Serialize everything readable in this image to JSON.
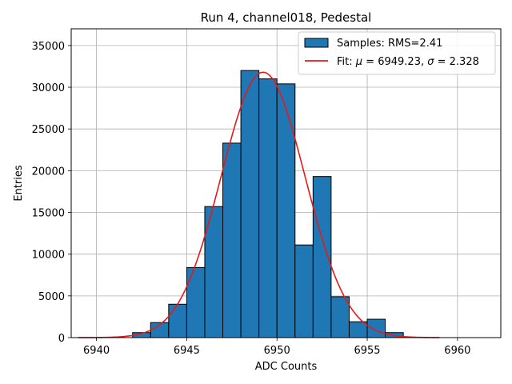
{
  "chart_data": {
    "type": "histogram",
    "title": "Run 4, channel018, Pedestal",
    "xlabel": "ADC Counts",
    "ylabel": "Entries",
    "xlim": [
      6938.6,
      6962.4
    ],
    "ylim": [
      0,
      37000
    ],
    "xticks": [
      6940,
      6945,
      6950,
      6955,
      6960
    ],
    "yticks": [
      0,
      5000,
      10000,
      15000,
      20000,
      25000,
      30000,
      35000
    ],
    "grid": true,
    "legend_position": "top-right",
    "bins": [
      {
        "x0": 6942,
        "x1": 6943,
        "count": 600
      },
      {
        "x0": 6943,
        "x1": 6944,
        "count": 1800
      },
      {
        "x0": 6944,
        "x1": 6945,
        "count": 4000
      },
      {
        "x0": 6945,
        "x1": 6946,
        "count": 8400
      },
      {
        "x0": 6946,
        "x1": 6947,
        "count": 15700
      },
      {
        "x0": 6947,
        "x1": 6948,
        "count": 23300
      },
      {
        "x0": 6948,
        "x1": 6949,
        "count": 32000
      },
      {
        "x0": 6949,
        "x1": 6950,
        "count": 31000
      },
      {
        "x0": 6950,
        "x1": 6951,
        "count": 30400
      },
      {
        "x0": 6951,
        "x1": 6952,
        "count": 11100
      },
      {
        "x0": 6952,
        "x1": 6953,
        "count": 19300
      },
      {
        "x0": 6953,
        "x1": 6954,
        "count": 4900
      },
      {
        "x0": 6954,
        "x1": 6955,
        "count": 1900
      },
      {
        "x0": 6955,
        "x1": 6956,
        "count": 2200
      },
      {
        "x0": 6956,
        "x1": 6957,
        "count": 600
      }
    ],
    "fit": {
      "mu": 6949.23,
      "sigma": 2.328,
      "amplitude": 31800,
      "x_range": [
        6939,
        6959
      ]
    },
    "legend": {
      "samples_label": "Samples: RMS=2.41",
      "fit_label_prefix": "Fit: ",
      "fit_mu_symbol": "μ",
      "fit_mu_text": " = 6949.23, ",
      "fit_sigma_symbol": "σ",
      "fit_sigma_text": " = 2.328"
    },
    "colors": {
      "bar_fill": "#1f77b4",
      "bar_edge": "#000000",
      "fit_line": "#e41a1c",
      "grid": "#b0b0b0"
    }
  }
}
